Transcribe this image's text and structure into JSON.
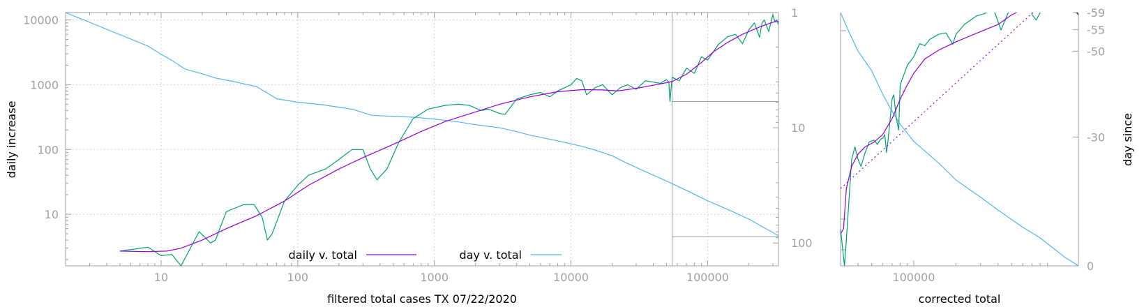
{
  "colors": {
    "daily": "#9400d3",
    "raw": "#009e73",
    "day": "#56b4e9",
    "frame": "#a0a0a0",
    "tick_text": "#a0a0a0",
    "grid": "#d0d0d0",
    "label_text": "#000000"
  },
  "chart_data": [
    {
      "type": "line",
      "xlabel": "filtered total cases TX 07/22/2020",
      "ylabel": "daily increase",
      "y2label": "",
      "x_scale": "log",
      "y_scale": "log",
      "y2_scale": "log-inverted",
      "xlim": [
        2,
        330000
      ],
      "ylim": [
        1.6,
        13000
      ],
      "y2lim": [
        1,
        158
      ],
      "grid": true,
      "x_ticks": [
        10,
        100,
        1000,
        10000,
        100000
      ],
      "x_tick_labels": [
        "10",
        "100",
        "1000",
        "10000",
        "100000"
      ],
      "y_ticks": [
        10,
        100,
        1000,
        10000
      ],
      "y_tick_labels": [
        "10",
        "100",
        "1000",
        "10000"
      ],
      "y2_ticks": [
        1,
        10,
        100
      ],
      "y2_tick_labels": [
        "1",
        "10",
        "100"
      ],
      "legend_position": "bottom-center",
      "inset_box": {
        "x": [
          55000,
          330000
        ],
        "y": [
          1.6,
          4.5
        ],
        "y_top": [
          550,
          13000
        ]
      },
      "series": [
        {
          "name": "daily v. total",
          "color_key": "daily",
          "axis": "y",
          "points": [
            [
              5,
              2.7
            ],
            [
              8,
              2.65
            ],
            [
              11,
              2.7
            ],
            [
              14,
              3.0
            ],
            [
              20,
              4.0
            ],
            [
              30,
              6.0
            ],
            [
              50,
              9.5
            ],
            [
              80,
              16
            ],
            [
              120,
              28
            ],
            [
              200,
              50
            ],
            [
              300,
              75
            ],
            [
              500,
              120
            ],
            [
              800,
              190
            ],
            [
              1200,
              270
            ],
            [
              2000,
              380
            ],
            [
              3000,
              500
            ],
            [
              5000,
              650
            ],
            [
              8000,
              780
            ],
            [
              12000,
              840
            ],
            [
              17000,
              830
            ],
            [
              22000,
              800
            ],
            [
              30000,
              880
            ],
            [
              40000,
              980
            ],
            [
              55000,
              1120
            ],
            [
              70000,
              1450
            ],
            [
              90000,
              2200
            ],
            [
              110000,
              3200
            ],
            [
              140000,
              4500
            ],
            [
              180000,
              6000
            ],
            [
              220000,
              7200
            ],
            [
              260000,
              8300
            ],
            [
              300000,
              9200
            ],
            [
              330000,
              9500
            ]
          ]
        },
        {
          "name": "",
          "color_key": "raw",
          "axis": "y",
          "points": [
            [
              5,
              2.7
            ],
            [
              8,
              3.1
            ],
            [
              10,
              2.3
            ],
            [
              12,
              2.4
            ],
            [
              14,
              1.6
            ],
            [
              19,
              5.4
            ],
            [
              23,
              3.6
            ],
            [
              25,
              4.0
            ],
            [
              30,
              11
            ],
            [
              40,
              14
            ],
            [
              48,
              14
            ],
            [
              55,
              9
            ],
            [
              60,
              4
            ],
            [
              65,
              5
            ],
            [
              80,
              16
            ],
            [
              100,
              28
            ],
            [
              120,
              40
            ],
            [
              160,
              50
            ],
            [
              200,
              70
            ],
            [
              250,
              100
            ],
            [
              300,
              100
            ],
            [
              340,
              50
            ],
            [
              380,
              34
            ],
            [
              450,
              50
            ],
            [
              550,
              130
            ],
            [
              700,
              300
            ],
            [
              900,
              420
            ],
            [
              1200,
              480
            ],
            [
              1500,
              500
            ],
            [
              1800,
              480
            ],
            [
              2200,
              400
            ],
            [
              2500,
              420
            ],
            [
              3000,
              360
            ],
            [
              3300,
              350
            ],
            [
              4000,
              600
            ],
            [
              5000,
              700
            ],
            [
              6000,
              760
            ],
            [
              7000,
              650
            ],
            [
              8000,
              800
            ],
            [
              10000,
              1000
            ],
            [
              11000,
              1250
            ],
            [
              12000,
              1150
            ],
            [
              13000,
              700
            ],
            [
              15000,
              900
            ],
            [
              17000,
              1000
            ],
            [
              20000,
              700
            ],
            [
              23000,
              900
            ],
            [
              26000,
              1000
            ],
            [
              30000,
              850
            ],
            [
              35000,
              1150
            ],
            [
              40000,
              1100
            ],
            [
              45000,
              1050
            ],
            [
              50000,
              1200
            ],
            [
              52000,
              1100
            ],
            [
              53000,
              550
            ],
            [
              55000,
              1300
            ],
            [
              62000,
              1150
            ],
            [
              70000,
              1800
            ],
            [
              80000,
              1500
            ],
            [
              90000,
              2700
            ],
            [
              100000,
              2400
            ],
            [
              120000,
              4200
            ],
            [
              140000,
              5500
            ],
            [
              160000,
              6000
            ],
            [
              180000,
              4300
            ],
            [
              200000,
              7000
            ],
            [
              220000,
              9000
            ],
            [
              240000,
              5400
            ],
            [
              250000,
              9000
            ],
            [
              260000,
              10000
            ],
            [
              280000,
              6600
            ],
            [
              300000,
              12000
            ],
            [
              310000,
              9500
            ],
            [
              320000,
              10000
            ],
            [
              330000,
              8500
            ]
          ]
        },
        {
          "name": "day v. total",
          "color_key": "day",
          "axis": "y2",
          "points": [
            [
              2,
              1
            ],
            [
              8,
              1.95
            ],
            [
              10,
              2.3
            ],
            [
              12,
              2.6
            ],
            [
              15,
              3.1
            ],
            [
              20,
              3.4
            ],
            [
              25,
              3.7
            ],
            [
              35,
              4.0
            ],
            [
              50,
              4.4
            ],
            [
              60,
              5.0
            ],
            [
              70,
              5.6
            ],
            [
              100,
              6.0
            ],
            [
              150,
              6.3
            ],
            [
              250,
              6.9
            ],
            [
              350,
              7.8
            ],
            [
              700,
              8.1
            ],
            [
              1000,
              8.4
            ],
            [
              1500,
              8.9
            ],
            [
              2000,
              9.4
            ],
            [
              3000,
              10
            ],
            [
              4000,
              10.8
            ],
            [
              5000,
              11.6
            ],
            [
              8000,
              13
            ],
            [
              12000,
              14.5
            ],
            [
              15000,
              15.6
            ],
            [
              20000,
              17.5
            ],
            [
              25000,
              20
            ],
            [
              35000,
              24
            ],
            [
              50000,
              29
            ],
            [
              70000,
              35
            ],
            [
              100000,
              43
            ],
            [
              150000,
              53
            ],
            [
              200000,
              62
            ],
            [
              250000,
              72
            ],
            [
              300000,
              81
            ],
            [
              330000,
              87
            ]
          ]
        }
      ]
    },
    {
      "type": "line",
      "xlabel": "corrected total",
      "ylabel": "",
      "y2label": "day since",
      "x_scale": "log",
      "y_scale": "log",
      "xlim": [
        30000,
        1500000
      ],
      "ylim": [
        1.6,
        13000
      ],
      "y2lim": [
        0,
        -59
      ],
      "grid": false,
      "x_ticks": [
        100000
      ],
      "x_tick_labels": [
        "100000"
      ],
      "y2_ticks": [
        -59,
        -55,
        -50,
        -30,
        0
      ],
      "y2_tick_labels": [
        "-59",
        "-55",
        "-50",
        "-30",
        "0"
      ],
      "series": [
        {
          "name": "",
          "color_key": "daily",
          "axis": "y",
          "points": [
            [
              30000,
              5
            ],
            [
              31500,
              6
            ],
            [
              33000,
              25
            ],
            [
              36000,
              55
            ],
            [
              40000,
              85
            ],
            [
              45000,
              110
            ],
            [
              52000,
              130
            ],
            [
              60000,
              170
            ],
            [
              70000,
              300
            ],
            [
              80000,
              600
            ],
            [
              90000,
              1000
            ],
            [
              100000,
              1500
            ],
            [
              120000,
              2500
            ],
            [
              150000,
              3400
            ],
            [
              200000,
              4600
            ],
            [
              300000,
              6600
            ],
            [
              400000,
              8500
            ],
            [
              500000,
              12000
            ],
            [
              650000,
              15500
            ],
            [
              800000,
              17000
            ],
            [
              1000000,
              17500
            ],
            [
              1200000,
              23000
            ],
            [
              1400000,
              15000
            ],
            [
              1500000,
              12000
            ]
          ]
        },
        {
          "name": "",
          "color_key": "raw",
          "axis": "y",
          "points": [
            [
              30000,
              6
            ],
            [
              31000,
              3
            ],
            [
              32000,
              1.6
            ],
            [
              33000,
              4
            ],
            [
              36000,
              70
            ],
            [
              38000,
              110
            ],
            [
              40000,
              70
            ],
            [
              42000,
              55
            ],
            [
              45000,
              90
            ],
            [
              48000,
              130
            ],
            [
              52000,
              140
            ],
            [
              55000,
              120
            ],
            [
              58000,
              145
            ],
            [
              60000,
              150
            ],
            [
              62000,
              170
            ],
            [
              64000,
              90
            ],
            [
              66000,
              160
            ],
            [
              70000,
              600
            ],
            [
              72000,
              700
            ],
            [
              75000,
              300
            ],
            [
              78000,
              200
            ],
            [
              80000,
              1000
            ],
            [
              90000,
              2000
            ],
            [
              100000,
              2700
            ],
            [
              110000,
              4300
            ],
            [
              120000,
              4000
            ],
            [
              130000,
              5000
            ],
            [
              150000,
              6000
            ],
            [
              170000,
              6300
            ],
            [
              190000,
              4200
            ],
            [
              200000,
              6000
            ],
            [
              230000,
              8500
            ],
            [
              280000,
              11500
            ],
            [
              320000,
              12500
            ],
            [
              370000,
              15000
            ],
            [
              420000,
              7000
            ],
            [
              480000,
              14000
            ],
            [
              550000,
              23000
            ],
            [
              650000,
              30000
            ],
            [
              700000,
              12000
            ],
            [
              750000,
              10000
            ],
            [
              800000,
              13000
            ],
            [
              900000,
              21000
            ],
            [
              1000000,
              35000
            ],
            [
              1100000,
              15000
            ],
            [
              1200000,
              42000
            ],
            [
              1300000,
              33000
            ],
            [
              1400000,
              14000
            ],
            [
              1500000,
              12000
            ]
          ]
        },
        {
          "name": "",
          "color_key": "daily",
          "axis": "y",
          "dashed": true,
          "points": [
            [
              30000,
              25
            ],
            [
              1300000,
              43000
            ]
          ]
        },
        {
          "name": "",
          "color_key": "day",
          "axis": "y2",
          "points": [
            [
              30000,
              -59
            ],
            [
              35000,
              -54
            ],
            [
              40000,
              -50
            ],
            [
              50000,
              -45.5
            ],
            [
              60000,
              -40
            ],
            [
              70000,
              -36
            ],
            [
              80000,
              -33
            ],
            [
              100000,
              -29
            ],
            [
              150000,
              -24
            ],
            [
              200000,
              -20
            ],
            [
              300000,
              -16
            ],
            [
              400000,
              -13
            ],
            [
              600000,
              -9
            ],
            [
              800000,
              -6.5
            ],
            [
              1000000,
              -4
            ],
            [
              1200000,
              -2
            ],
            [
              1500000,
              0
            ]
          ]
        }
      ]
    }
  ]
}
